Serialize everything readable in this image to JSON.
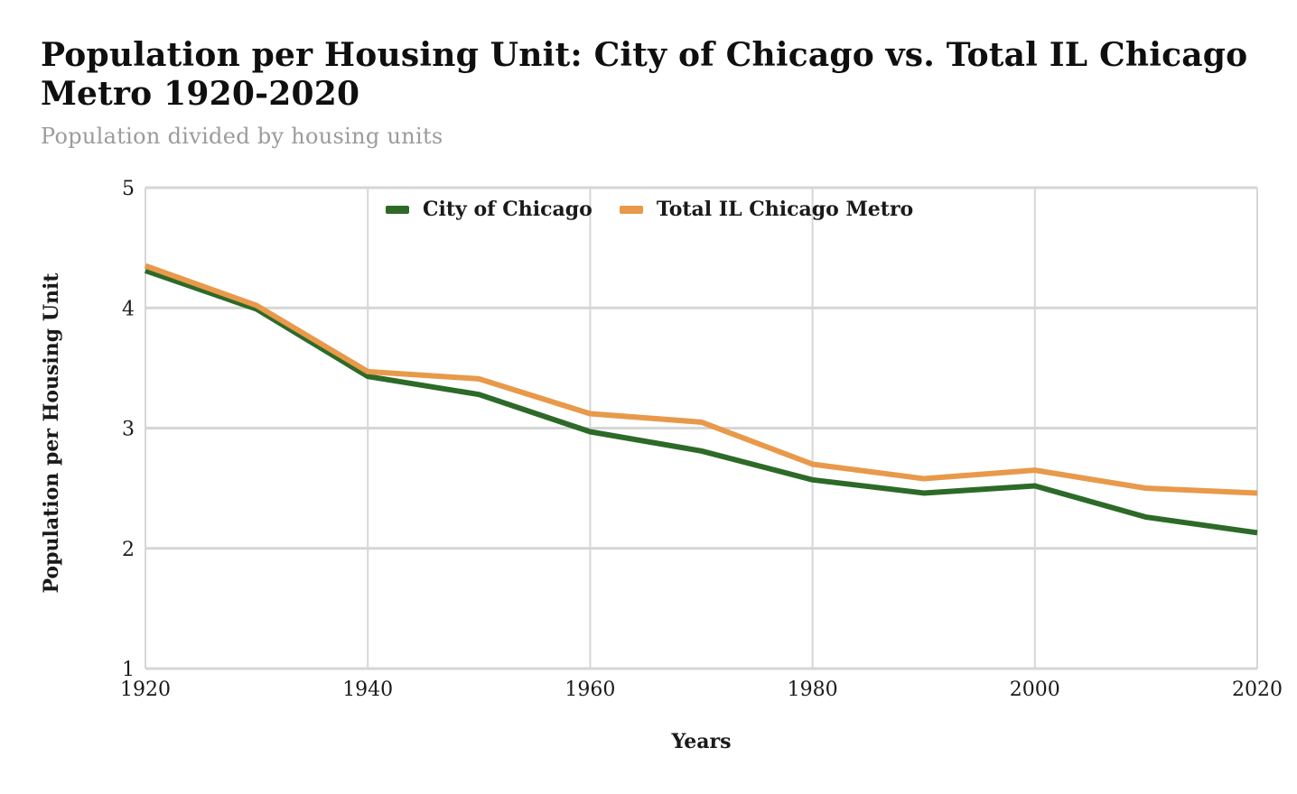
{
  "header": {
    "title": "Population per Housing Unit: City of Chicago vs. Total IL Chicago Metro 1920-2020",
    "title_line1": "Population per Housing Unit: City of Chicago vs. Total IL Chicago",
    "title_line2": "Metro 1920-2020",
    "subtitle": "Population divided by housing units"
  },
  "chart_data": {
    "type": "line",
    "x": [
      1920,
      1930,
      1940,
      1950,
      1960,
      1970,
      1980,
      1990,
      2000,
      2010,
      2020
    ],
    "series": [
      {
        "name": "City of Chicago",
        "color": "#2d6a28",
        "values": [
          4.31,
          3.99,
          3.43,
          3.28,
          2.97,
          2.81,
          2.57,
          2.46,
          2.52,
          2.26,
          2.13
        ]
      },
      {
        "name": "Total IL Chicago Metro",
        "color": "#e8994a",
        "values": [
          4.35,
          4.02,
          3.47,
          3.41,
          3.12,
          3.05,
          2.7,
          2.58,
          2.65,
          2.5,
          2.46
        ]
      }
    ],
    "xlabel": "Years",
    "ylabel": "Population per Housing Unit",
    "xlim": [
      1920,
      2020
    ],
    "ylim": [
      1,
      5
    ],
    "x_ticks": [
      "1920",
      "1940",
      "1960",
      "1980",
      "2000",
      "2020"
    ],
    "y_ticks": [
      "1",
      "2",
      "3",
      "4",
      "5"
    ],
    "grid": true,
    "legend_position": "top-center",
    "colors": {
      "grid": "#d6d6d6",
      "tick_text": "#1a1a1a"
    },
    "line_width": 6
  }
}
